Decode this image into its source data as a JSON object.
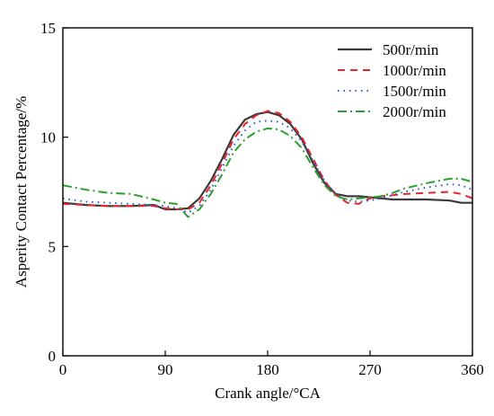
{
  "chart_data": {
    "type": "line",
    "title": "",
    "xlabel": "Crank angle/°CA",
    "ylabel": "Asperity Contact Percentage/%",
    "xlim": [
      0,
      360
    ],
    "ylim": [
      0,
      15
    ],
    "xticks": [
      "0",
      "90",
      "180",
      "270",
      "360"
    ],
    "yticks": [
      "0",
      "5",
      "10",
      "15"
    ],
    "grid": false,
    "legend_position": "top-right",
    "series": [
      {
        "name": "500r/min",
        "color": "#3a3a3a",
        "dash": "solid",
        "x": [
          0,
          20,
          40,
          60,
          80,
          90,
          100,
          110,
          120,
          130,
          140,
          150,
          160,
          170,
          180,
          190,
          200,
          210,
          220,
          230,
          240,
          250,
          260,
          270,
          280,
          290,
          300,
          320,
          340,
          350,
          360
        ],
        "y": [
          7.0,
          6.9,
          6.85,
          6.85,
          6.9,
          6.7,
          6.7,
          6.75,
          7.2,
          8.0,
          9.0,
          10.1,
          10.8,
          11.05,
          11.15,
          11.0,
          10.6,
          9.9,
          8.8,
          7.9,
          7.4,
          7.3,
          7.3,
          7.25,
          7.2,
          7.15,
          7.15,
          7.15,
          7.1,
          7.0,
          7.0
        ]
      },
      {
        "name": "1000r/min",
        "color": "#e8262a",
        "dash": "8,6",
        "x": [
          0,
          20,
          40,
          60,
          80,
          90,
          100,
          110,
          120,
          130,
          140,
          150,
          160,
          170,
          180,
          190,
          200,
          210,
          220,
          230,
          240,
          250,
          260,
          270,
          280,
          290,
          300,
          320,
          340,
          350,
          360
        ],
        "y": [
          6.95,
          6.9,
          6.85,
          6.85,
          6.85,
          6.75,
          6.7,
          6.7,
          7.0,
          7.8,
          8.8,
          9.9,
          10.6,
          11.0,
          11.2,
          11.1,
          10.7,
          10.0,
          9.0,
          8.0,
          7.35,
          7.0,
          6.95,
          7.2,
          7.3,
          7.35,
          7.4,
          7.45,
          7.5,
          7.4,
          7.2
        ]
      },
      {
        "name": "1500r/min",
        "color": "#2457d6",
        "dash": "1.5,5",
        "x": [
          0,
          20,
          40,
          60,
          80,
          90,
          100,
          110,
          120,
          130,
          140,
          150,
          160,
          170,
          180,
          190,
          200,
          210,
          220,
          230,
          240,
          250,
          260,
          270,
          280,
          290,
          300,
          320,
          340,
          350,
          360
        ],
        "y": [
          7.2,
          7.05,
          7.0,
          6.95,
          6.9,
          6.85,
          6.75,
          6.55,
          6.85,
          7.6,
          8.6,
          9.6,
          10.3,
          10.7,
          10.75,
          10.7,
          10.4,
          9.8,
          8.9,
          8.0,
          7.4,
          7.1,
          7.05,
          7.1,
          7.2,
          7.35,
          7.5,
          7.7,
          7.85,
          7.8,
          7.6
        ]
      },
      {
        "name": "2000r/min",
        "color": "#2ca02c",
        "dash": "10,4,2,4",
        "x": [
          0,
          20,
          40,
          60,
          80,
          90,
          100,
          110,
          120,
          130,
          140,
          150,
          160,
          170,
          180,
          190,
          200,
          210,
          220,
          230,
          240,
          250,
          260,
          270,
          280,
          290,
          300,
          320,
          340,
          350,
          360
        ],
        "y": [
          7.8,
          7.6,
          7.45,
          7.4,
          7.15,
          7.0,
          6.95,
          6.35,
          6.7,
          7.4,
          8.3,
          9.3,
          9.9,
          10.25,
          10.4,
          10.35,
          10.05,
          9.5,
          8.6,
          7.8,
          7.3,
          7.15,
          7.2,
          7.25,
          7.3,
          7.45,
          7.65,
          7.9,
          8.1,
          8.1,
          7.95
        ]
      }
    ]
  }
}
